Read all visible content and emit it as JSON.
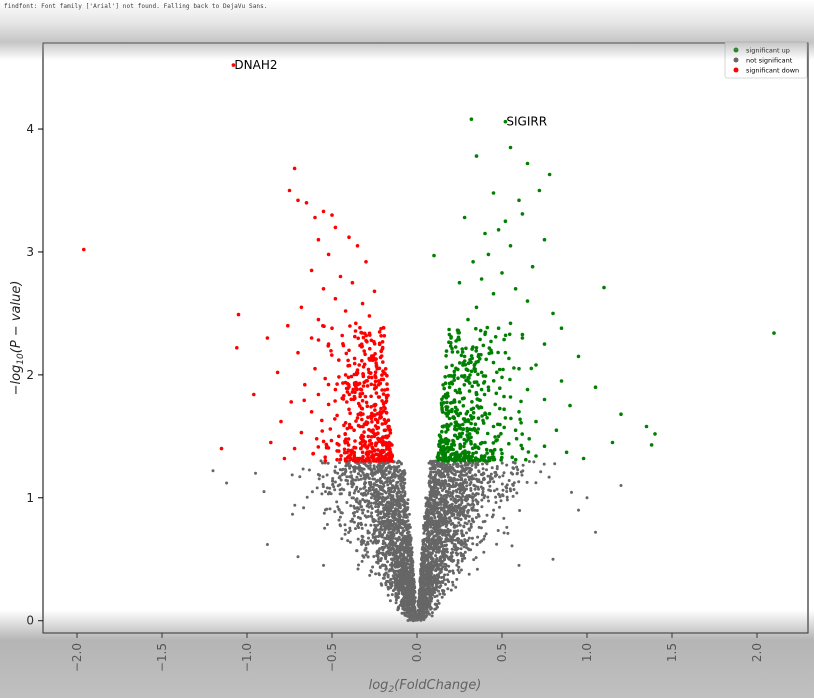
{
  "warning_text": "findfont: Font family ['Arial'] not found. Falling back to DejaVu Sans.",
  "chart_data": {
    "type": "scatter",
    "xlabel_base": "log",
    "xlabel_sub": "2",
    "xlabel_rest": "(FoldChange)",
    "ylabel_pre": "−log",
    "ylabel_sub": "10",
    "ylabel_rest": "(P − value)",
    "xlim": [
      -2.2,
      2.3
    ],
    "ylim": [
      -0.1,
      4.7
    ],
    "x_ticks": [
      -2.0,
      -1.5,
      -1.0,
      -0.5,
      0.0,
      0.5,
      1.0,
      1.5,
      2.0
    ],
    "x_tick_labels": [
      "−2.0",
      "−1.5",
      "−1.0",
      "−0.5",
      "0.0",
      "0.5",
      "1.0",
      "1.5",
      "2.0"
    ],
    "y_ticks": [
      0,
      1,
      2,
      3,
      4
    ],
    "y_tick_labels": [
      "0",
      "1",
      "2",
      "3",
      "4"
    ],
    "significance_threshold": 1.3,
    "legend_position": "top-right",
    "colors": {
      "up": "#008000",
      "not": "#666666",
      "down": "#ff0000"
    },
    "series": [
      {
        "name": "significant up",
        "color": "#008000",
        "points": [
          [
            0.32,
            4.08
          ],
          [
            0.52,
            4.06
          ],
          [
            0.55,
            3.85
          ],
          [
            0.35,
            3.78
          ],
          [
            0.65,
            3.72
          ],
          [
            0.78,
            3.63
          ],
          [
            0.72,
            3.5
          ],
          [
            0.45,
            3.48
          ],
          [
            0.6,
            3.42
          ],
          [
            0.62,
            3.31
          ],
          [
            0.28,
            3.28
          ],
          [
            0.52,
            3.25
          ],
          [
            0.48,
            3.18
          ],
          [
            0.4,
            3.15
          ],
          [
            0.75,
            3.1
          ],
          [
            0.55,
            3.05
          ],
          [
            0.42,
            2.98
          ],
          [
            0.33,
            2.92
          ],
          [
            0.68,
            2.88
          ],
          [
            0.1,
            2.97
          ],
          [
            0.5,
            2.83
          ],
          [
            0.38,
            2.78
          ],
          [
            0.58,
            2.7
          ],
          [
            1.1,
            2.71
          ],
          [
            0.25,
            2.75
          ],
          [
            0.45,
            2.66
          ],
          [
            0.65,
            2.6
          ],
          [
            0.35,
            2.55
          ],
          [
            0.8,
            2.5
          ],
          [
            0.3,
            2.45
          ],
          [
            0.55,
            2.42
          ],
          [
            0.48,
            2.38
          ],
          [
            0.85,
            2.38
          ],
          [
            0.4,
            2.33
          ],
          [
            0.62,
            2.3
          ],
          [
            2.1,
            2.34
          ],
          [
            0.2,
            2.3
          ],
          [
            0.75,
            2.25
          ],
          [
            0.35,
            2.22
          ],
          [
            0.52,
            2.18
          ],
          [
            0.95,
            2.15
          ],
          [
            0.28,
            2.15
          ],
          [
            0.45,
            2.1
          ],
          [
            0.7,
            2.08
          ],
          [
            0.6,
            2.05
          ],
          [
            0.38,
            2.02
          ],
          [
            0.22,
            2.0
          ],
          [
            0.5,
            1.98
          ],
          [
            0.85,
            1.95
          ],
          [
            0.3,
            1.95
          ],
          [
            1.05,
            1.9
          ],
          [
            0.42,
            1.9
          ],
          [
            0.65,
            1.88
          ],
          [
            0.18,
            1.85
          ],
          [
            0.35,
            1.84
          ],
          [
            0.55,
            1.82
          ],
          [
            0.75,
            1.8
          ],
          [
            0.25,
            1.78
          ],
          [
            0.46,
            1.76
          ],
          [
            0.9,
            1.75
          ],
          [
            0.32,
            1.72
          ],
          [
            0.6,
            1.7
          ],
          [
            0.15,
            1.7
          ],
          [
            0.4,
            1.68
          ],
          [
            1.2,
            1.68
          ],
          [
            0.52,
            1.65
          ],
          [
            0.28,
            1.64
          ],
          [
            0.7,
            1.62
          ],
          [
            0.2,
            1.6
          ],
          [
            0.45,
            1.58
          ],
          [
            0.36,
            1.56
          ],
          [
            0.58,
            1.55
          ],
          [
            0.82,
            1.55
          ],
          [
            0.25,
            1.52
          ],
          [
            1.35,
            1.58
          ],
          [
            1.4,
            1.52
          ],
          [
            0.48,
            1.5
          ],
          [
            0.3,
            1.49
          ],
          [
            0.66,
            1.48
          ],
          [
            0.18,
            1.47
          ],
          [
            0.4,
            1.45
          ],
          [
            0.54,
            1.44
          ],
          [
            0.22,
            1.43
          ],
          [
            0.75,
            1.42
          ],
          [
            1.15,
            1.45
          ],
          [
            1.38,
            1.43
          ],
          [
            0.34,
            1.41
          ],
          [
            0.62,
            1.4
          ],
          [
            0.14,
            1.39
          ],
          [
            0.44,
            1.38
          ],
          [
            0.27,
            1.37
          ],
          [
            0.88,
            1.37
          ],
          [
            0.5,
            1.36
          ],
          [
            0.2,
            1.35
          ],
          [
            0.38,
            1.34
          ],
          [
            0.7,
            1.34
          ],
          [
            0.12,
            1.33
          ],
          [
            0.56,
            1.33
          ],
          [
            0.3,
            1.32
          ],
          [
            0.98,
            1.32
          ],
          [
            0.45,
            1.31
          ],
          [
            0.24,
            1.31
          ],
          [
            0.64,
            1.31
          ],
          [
            0.33,
            1.3
          ],
          [
            0.16,
            1.3
          ]
        ]
      },
      {
        "name": "significant down",
        "color": "#ff0000",
        "points": [
          [
            -1.08,
            4.52
          ],
          [
            -0.72,
            3.68
          ],
          [
            -0.75,
            3.5
          ],
          [
            -0.65,
            3.4
          ],
          [
            -0.7,
            3.42
          ],
          [
            -0.55,
            3.33
          ],
          [
            -0.5,
            3.3
          ],
          [
            -0.6,
            3.28
          ],
          [
            -0.48,
            3.2
          ],
          [
            -0.4,
            3.12
          ],
          [
            -0.58,
            3.1
          ],
          [
            -1.96,
            3.02
          ],
          [
            -0.35,
            3.05
          ],
          [
            -0.52,
            2.98
          ],
          [
            -0.3,
            2.92
          ],
          [
            -0.62,
            2.85
          ],
          [
            -0.45,
            2.8
          ],
          [
            -0.38,
            2.75
          ],
          [
            -0.55,
            2.7
          ],
          [
            -0.25,
            2.68
          ],
          [
            -0.48,
            2.62
          ],
          [
            -0.32,
            2.58
          ],
          [
            -0.68,
            2.55
          ],
          [
            -0.42,
            2.52
          ],
          [
            -1.05,
            2.49
          ],
          [
            -0.28,
            2.48
          ],
          [
            -0.58,
            2.45
          ],
          [
            -0.36,
            2.42
          ],
          [
            -0.76,
            2.4
          ],
          [
            -0.5,
            2.38
          ],
          [
            -0.22,
            2.35
          ],
          [
            -0.44,
            2.32
          ],
          [
            -0.62,
            2.3
          ],
          [
            -0.3,
            2.28
          ],
          [
            -0.88,
            2.3
          ],
          [
            -1.06,
            2.22
          ],
          [
            -0.52,
            2.25
          ],
          [
            -0.4,
            2.2
          ],
          [
            -0.7,
            2.18
          ],
          [
            -0.26,
            2.15
          ],
          [
            -0.46,
            2.12
          ],
          [
            -0.34,
            2.08
          ],
          [
            -0.6,
            2.05
          ],
          [
            -0.2,
            2.03
          ],
          [
            -0.82,
            2.02
          ],
          [
            -0.42,
            2.0
          ],
          [
            -0.54,
            1.97
          ],
          [
            -0.3,
            1.95
          ],
          [
            -0.66,
            1.92
          ],
          [
            -0.24,
            1.9
          ],
          [
            -0.48,
            1.88
          ],
          [
            -0.38,
            1.86
          ],
          [
            -0.58,
            1.84
          ],
          [
            -0.96,
            1.84
          ],
          [
            -0.18,
            1.83
          ],
          [
            -0.44,
            1.81
          ],
          [
            -0.32,
            1.79
          ],
          [
            -0.74,
            1.78
          ],
          [
            -0.52,
            1.76
          ],
          [
            -0.27,
            1.74
          ],
          [
            -0.4,
            1.72
          ],
          [
            -0.62,
            1.7
          ],
          [
            -0.21,
            1.69
          ],
          [
            -0.47,
            1.67
          ],
          [
            -0.35,
            1.65
          ],
          [
            -0.56,
            1.63
          ],
          [
            -0.8,
            1.62
          ],
          [
            -0.29,
            1.61
          ],
          [
            -0.43,
            1.59
          ],
          [
            -0.17,
            1.58
          ],
          [
            -0.51,
            1.56
          ],
          [
            -0.37,
            1.55
          ],
          [
            -0.68,
            1.53
          ],
          [
            -0.25,
            1.52
          ],
          [
            -0.46,
            1.5
          ],
          [
            -0.33,
            1.49
          ],
          [
            -0.59,
            1.48
          ],
          [
            -0.2,
            1.46
          ],
          [
            -0.41,
            1.45
          ],
          [
            -0.86,
            1.45
          ],
          [
            -0.28,
            1.43
          ],
          [
            -0.53,
            1.42
          ],
          [
            -0.37,
            1.41
          ],
          [
            -0.72,
            1.4
          ],
          [
            -0.23,
            1.39
          ],
          [
            -1.15,
            1.4
          ],
          [
            -0.46,
            1.38
          ],
          [
            -0.32,
            1.37
          ],
          [
            -0.61,
            1.36
          ],
          [
            -0.18,
            1.35
          ],
          [
            -0.4,
            1.34
          ],
          [
            -0.26,
            1.34
          ],
          [
            -0.54,
            1.33
          ],
          [
            -0.35,
            1.32
          ],
          [
            -0.78,
            1.32
          ],
          [
            -0.22,
            1.31
          ],
          [
            -0.47,
            1.31
          ],
          [
            -0.3,
            1.3
          ],
          [
            -0.42,
            1.3
          ],
          [
            -0.15,
            1.3
          ]
        ]
      }
    ],
    "not_significant": {
      "name": "not significant",
      "color": "#666666",
      "y_max": 1.3
    },
    "annotations": [
      {
        "label": "DNAH2",
        "x": -1.08,
        "y": 4.52
      },
      {
        "label": "SIGIRR",
        "x": 0.52,
        "y": 4.06
      }
    ],
    "legend": [
      {
        "label": "significant up",
        "color": "#008000"
      },
      {
        "label": "not significant",
        "color": "#666666"
      },
      {
        "label": "significant down",
        "color": "#ff0000"
      }
    ]
  }
}
